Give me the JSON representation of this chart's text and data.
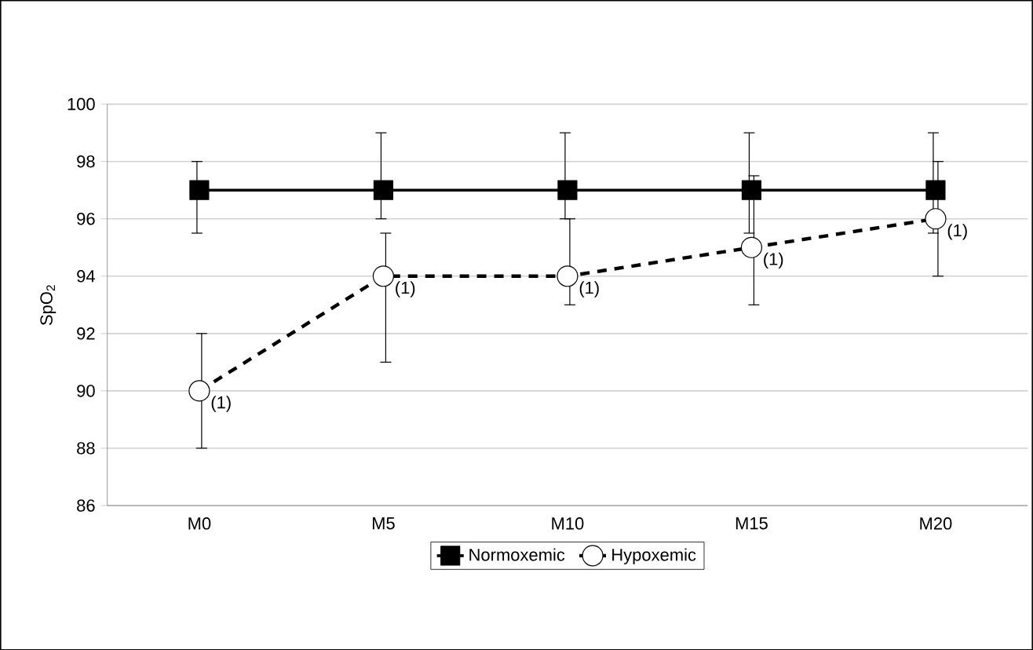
{
  "chart_data": {
    "type": "line",
    "ylabel": "SpO$_{2}$",
    "categories": [
      "M0",
      "M5",
      "M10",
      "M15",
      "M20"
    ],
    "series": [
      {
        "name": "Normoxemic",
        "color": "#000000",
        "marker": "square",
        "line_style": "solid",
        "values": [
          97,
          97,
          97,
          97,
          97
        ],
        "errors": [
          [
            95.5,
            98
          ],
          [
            96,
            99
          ],
          [
            96,
            99
          ],
          [
            95.5,
            99
          ],
          [
            95.5,
            99
          ]
        ]
      },
      {
        "name": "Hypoxemic",
        "color": "#000000",
        "marker": "circle",
        "line_style": "dashed",
        "values": [
          90,
          94,
          94,
          95,
          96
        ],
        "errors": [
          [
            88,
            92
          ],
          [
            91,
            95.5
          ],
          [
            93,
            96
          ],
          [
            93,
            97.5
          ],
          [
            94,
            98
          ]
        ]
      }
    ],
    "ylim": [
      86,
      100
    ],
    "yticks": [
      86,
      88,
      90,
      92,
      94,
      96,
      98,
      100
    ],
    "grid": "y",
    "legend": "bottom",
    "annotations": [
      {
        "text": "(1)",
        "x": "M0",
        "y": 90
      },
      {
        "text": "(1)",
        "x": "M5",
        "y": 94
      },
      {
        "text": "(1)",
        "x": "M10",
        "y": 94
      },
      {
        "text": "(1)",
        "x": "M15",
        "y": 95
      },
      {
        "text": "(1)",
        "x": "M20",
        "y": 96
      }
    ]
  }
}
